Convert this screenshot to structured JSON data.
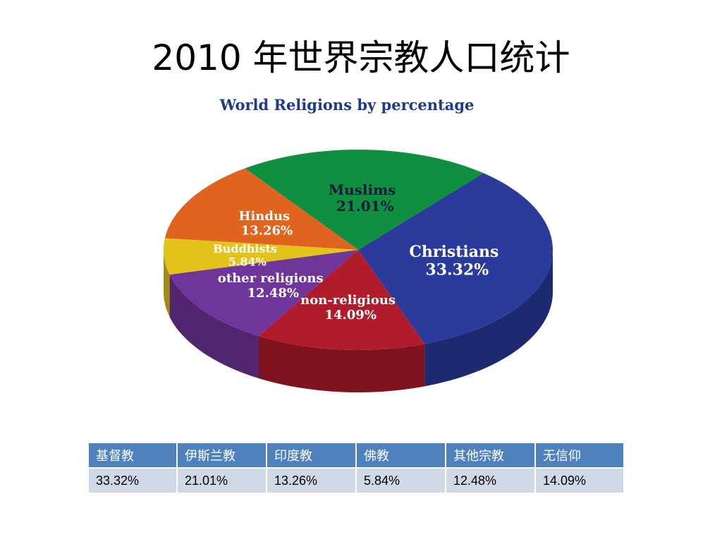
{
  "slide": {
    "title": "2010 年世界宗教人口统计"
  },
  "chart_data": {
    "type": "pie",
    "title": "World Religions by percentage",
    "series": [
      {
        "name": "Christians",
        "value": 33.32,
        "label": "33.32%",
        "color": "#2a3b9b"
      },
      {
        "name": "Muslims",
        "value": 21.01,
        "label": "21.01%",
        "color": "#0f9040"
      },
      {
        "name": "Hindus",
        "value": 13.26,
        "label": "13.26%",
        "color": "#e0631e"
      },
      {
        "name": "Buddhists",
        "value": 5.84,
        "label": "5.84%",
        "color": "#e4c21c"
      },
      {
        "name": "other religions",
        "value": 12.48,
        "label": "12.48%",
        "color": "#70359a"
      },
      {
        "name": "non-religious",
        "value": 14.09,
        "label": "14.09%",
        "color": "#b01c2c"
      }
    ]
  },
  "table": {
    "headers": [
      "基督教",
      "伊斯兰教",
      "印度教",
      "佛教",
      "其他宗教",
      "无信仰"
    ],
    "values": [
      "33.32%",
      "21.01%",
      "13.26%",
      "5.84%",
      "12.48%",
      "14.09%"
    ]
  }
}
